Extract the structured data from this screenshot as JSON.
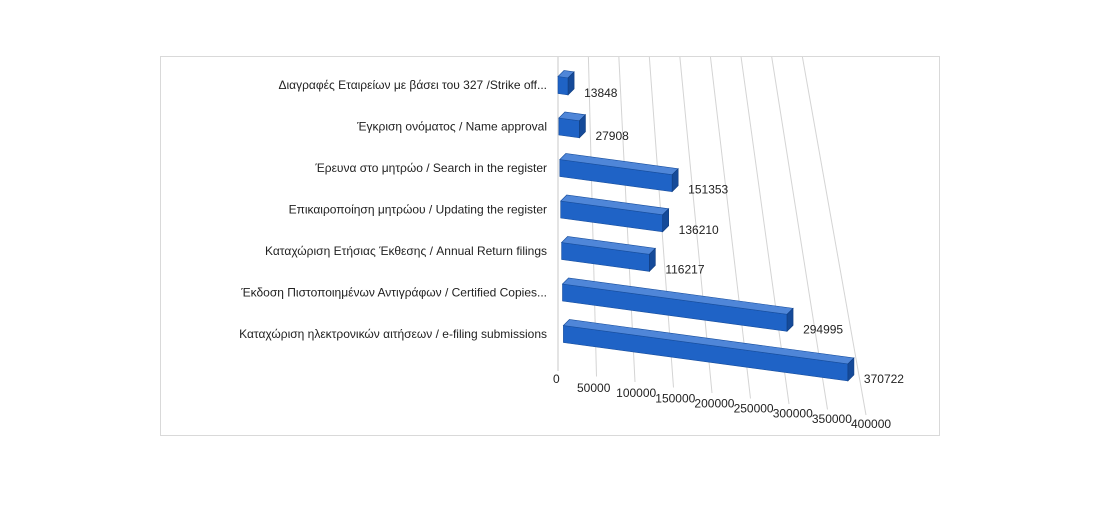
{
  "chart_data": {
    "type": "bar",
    "orientation": "horizontal",
    "style": "3d",
    "bar_color": "#1f63c6",
    "categories": [
      "Διαγραφές Εταιρείων με βάσει του 327 /Strike off...",
      "Έγκριση ονόματος / Name approval",
      "Έρευνα στο μητρώο / Search in the register",
      "Επικαιροποίηση μητρώου / Updating the register",
      "Καταχώριση Ετήσιας Έκθεσης / Annual Return filings",
      "Έκδοση Πιστοποιημένων Αντιγράφων / Certified Copies...",
      "Καταχώριση ηλεκτρονικών αιτήσεων / e-filing submissions"
    ],
    "values": [
      13848,
      27908,
      151353,
      136210,
      116217,
      294995,
      370722
    ],
    "value_labels": [
      "13848",
      "27908",
      "151353",
      "136210",
      "116217",
      "294995",
      "370722"
    ],
    "xlim": [
      0,
      400000
    ],
    "x_ticks": [
      "0",
      "50000",
      "100000",
      "150000",
      "200000",
      "250000",
      "300000",
      "350000",
      "400000"
    ],
    "grid": true,
    "legend": "none"
  }
}
